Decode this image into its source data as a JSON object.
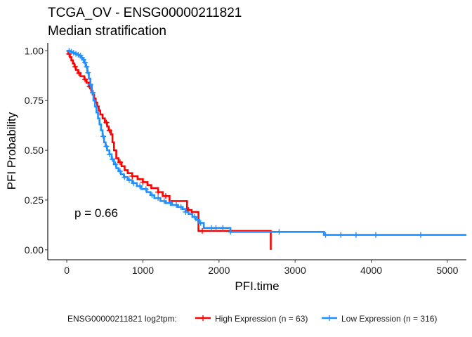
{
  "chart_data": {
    "type": "line",
    "subtype": "kaplan-meier",
    "title": "TCGA_OV - ENSG00000211821",
    "subtitle": "Median stratification",
    "xlabel": "PFI.time",
    "ylabel": "PFI Probability",
    "xlim": [
      -250,
      5250
    ],
    "ylim": [
      -0.05,
      1.04
    ],
    "x_ticks": [
      0,
      1000,
      2000,
      3000,
      4000,
      5000
    ],
    "x_tick_labels": [
      "0",
      "1000",
      "2000",
      "3000",
      "4000",
      "5000"
    ],
    "y_ticks": [
      0,
      0.25,
      0.5,
      0.75,
      1
    ],
    "y_tick_labels": [
      "0.00",
      "0.25",
      "0.50",
      "0.75",
      "1.00"
    ],
    "grid": false,
    "annotation": {
      "text": "p = 0.66",
      "x": 100,
      "y": 0.19
    },
    "legend": {
      "position": "bottom",
      "title": "ENSG00000211821 log2tpm:",
      "entries": [
        "High Expression (n = 63)",
        "Low Expression (n = 316)"
      ]
    },
    "series": [
      {
        "name": "High Expression (n = 63)",
        "color": "#ff0000",
        "steps": [
          [
            0,
            1.0
          ],
          [
            20,
            0.984
          ],
          [
            40,
            0.968
          ],
          [
            60,
            0.952
          ],
          [
            80,
            0.936
          ],
          [
            100,
            0.92
          ],
          [
            120,
            0.904
          ],
          [
            150,
            0.888
          ],
          [
            180,
            0.872
          ],
          [
            230,
            0.856
          ],
          [
            260,
            0.84
          ],
          [
            290,
            0.82
          ],
          [
            320,
            0.8
          ],
          [
            340,
            0.78
          ],
          [
            360,
            0.76
          ],
          [
            380,
            0.74
          ],
          [
            400,
            0.72
          ],
          [
            420,
            0.7
          ],
          [
            440,
            0.68
          ],
          [
            470,
            0.66
          ],
          [
            500,
            0.64
          ],
          [
            530,
            0.62
          ],
          [
            550,
            0.6
          ],
          [
            580,
            0.58
          ],
          [
            600,
            0.54
          ],
          [
            620,
            0.5
          ],
          [
            650,
            0.46
          ],
          [
            680,
            0.44
          ],
          [
            720,
            0.42
          ],
          [
            760,
            0.4
          ],
          [
            800,
            0.385
          ],
          [
            860,
            0.37
          ],
          [
            930,
            0.355
          ],
          [
            1000,
            0.34
          ],
          [
            1060,
            0.325
          ],
          [
            1110,
            0.31
          ],
          [
            1200,
            0.29
          ],
          [
            1260,
            0.27
          ],
          [
            1350,
            0.245
          ],
          [
            1580,
            0.2
          ],
          [
            1640,
            0.19
          ],
          [
            1730,
            0.095
          ],
          [
            2680,
            0.0
          ]
        ],
        "censor": [
          30,
          110,
          160,
          240,
          300,
          520,
          560,
          700,
          860,
          1000,
          1200,
          1300,
          1600,
          1780
        ]
      },
      {
        "name": "Low Expression (n = 316)",
        "color": "#1e90ff",
        "steps": [
          [
            0,
            1.0
          ],
          [
            40,
            0.995
          ],
          [
            80,
            0.99
          ],
          [
            110,
            0.985
          ],
          [
            140,
            0.98
          ],
          [
            170,
            0.975
          ],
          [
            190,
            0.965
          ],
          [
            210,
            0.955
          ],
          [
            230,
            0.94
          ],
          [
            250,
            0.92
          ],
          [
            270,
            0.89
          ],
          [
            290,
            0.86
          ],
          [
            310,
            0.83
          ],
          [
            330,
            0.79
          ],
          [
            350,
            0.75
          ],
          [
            370,
            0.72
          ],
          [
            390,
            0.69
          ],
          [
            410,
            0.66
          ],
          [
            430,
            0.63
          ],
          [
            450,
            0.6
          ],
          [
            470,
            0.57
          ],
          [
            490,
            0.54
          ],
          [
            510,
            0.52
          ],
          [
            530,
            0.5
          ],
          [
            560,
            0.48
          ],
          [
            590,
            0.455
          ],
          [
            620,
            0.43
          ],
          [
            650,
            0.41
          ],
          [
            680,
            0.395
          ],
          [
            710,
            0.38
          ],
          [
            750,
            0.365
          ],
          [
            800,
            0.35
          ],
          [
            860,
            0.335
          ],
          [
            920,
            0.32
          ],
          [
            980,
            0.305
          ],
          [
            1050,
            0.29
          ],
          [
            1100,
            0.275
          ],
          [
            1150,
            0.26
          ],
          [
            1230,
            0.245
          ],
          [
            1300,
            0.235
          ],
          [
            1380,
            0.225
          ],
          [
            1460,
            0.215
          ],
          [
            1520,
            0.205
          ],
          [
            1560,
            0.19
          ],
          [
            1600,
            0.18
          ],
          [
            1650,
            0.165
          ],
          [
            1700,
            0.15
          ],
          [
            1740,
            0.135
          ],
          [
            1800,
            0.11
          ],
          [
            2150,
            0.09
          ],
          [
            3380,
            0.075
          ]
        ],
        "censor": [
          30,
          60,
          90,
          120,
          150,
          180,
          200,
          220,
          240,
          260,
          280,
          310,
          340,
          480,
          520,
          560,
          600,
          640,
          700,
          760,
          820,
          880,
          960,
          1040,
          1120,
          1200,
          1280,
          1360,
          1440,
          1500,
          1560,
          1680,
          1760,
          1900,
          1960,
          2050,
          2150,
          2790,
          3400,
          3600,
          3800,
          4060,
          4650
        ]
      }
    ]
  }
}
